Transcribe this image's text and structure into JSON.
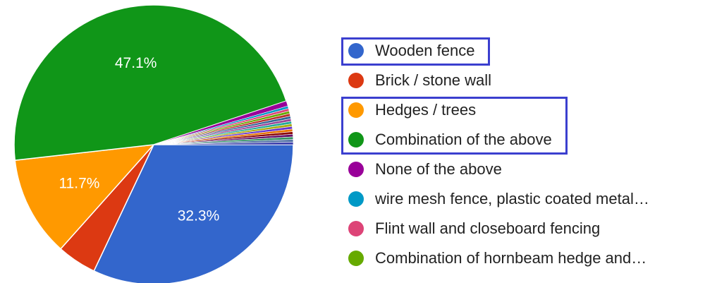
{
  "chart_data": {
    "type": "pie",
    "slices": [
      {
        "label": "Wooden fence",
        "value": 32.3,
        "value_label": "32.3%",
        "color": "#3366cc"
      },
      {
        "label": "Brick / stone wall",
        "value": 4.6,
        "value_label": "",
        "color": "#dc3912"
      },
      {
        "label": "Hedges / trees",
        "value": 11.7,
        "value_label": "11.7%",
        "color": "#ff9900"
      },
      {
        "label": "Combination of the above",
        "value": 47.1,
        "value_label": "47.1%",
        "color": "#109618"
      },
      {
        "label": "None of the above",
        "value": 0.6,
        "value_label": "",
        "color": "#990099"
      },
      {
        "label": "wire mesh fence, plastic coated metal…",
        "value": 0.3,
        "value_label": "",
        "color": "#0099c6"
      },
      {
        "label": "Flint wall and closeboard fencing",
        "value": 0.3,
        "value_label": "",
        "color": "#dd4477"
      },
      {
        "label": "Combination of hornbeam hedge and…",
        "value": 0.3,
        "value_label": "",
        "color": "#66aa00"
      },
      {
        "label": "",
        "value": 0.3,
        "value_label": "",
        "color": "#b82e2e"
      },
      {
        "label": "",
        "value": 0.3,
        "value_label": "",
        "color": "#316395"
      },
      {
        "label": "",
        "value": 0.3,
        "value_label": "",
        "color": "#994499"
      },
      {
        "label": "",
        "value": 0.3,
        "value_label": "",
        "color": "#22aa99"
      },
      {
        "label": "",
        "value": 0.3,
        "value_label": "",
        "color": "#aaaa11"
      },
      {
        "label": "",
        "value": 0.3,
        "value_label": "",
        "color": "#6633cc"
      },
      {
        "label": "",
        "value": 0.3,
        "value_label": "",
        "color": "#e67300"
      },
      {
        "label": "",
        "value": 0.3,
        "value_label": "",
        "color": "#8b0707"
      },
      {
        "label": "",
        "value": 0.3,
        "value_label": "",
        "color": "#651067"
      },
      {
        "label": "",
        "value": 0.3,
        "value_label": "",
        "color": "#329262"
      },
      {
        "label": "",
        "value": 0.3,
        "value_label": "",
        "color": "#5574a6"
      },
      {
        "label": "",
        "value": 0.3,
        "value_label": "",
        "color": "#3b3eac"
      }
    ],
    "legend_position": "right",
    "highlighted_legend_items": [
      "Wooden fence",
      "Hedges / trees",
      "Combination of the above"
    ],
    "highlight_color": "#3b3fcf"
  }
}
